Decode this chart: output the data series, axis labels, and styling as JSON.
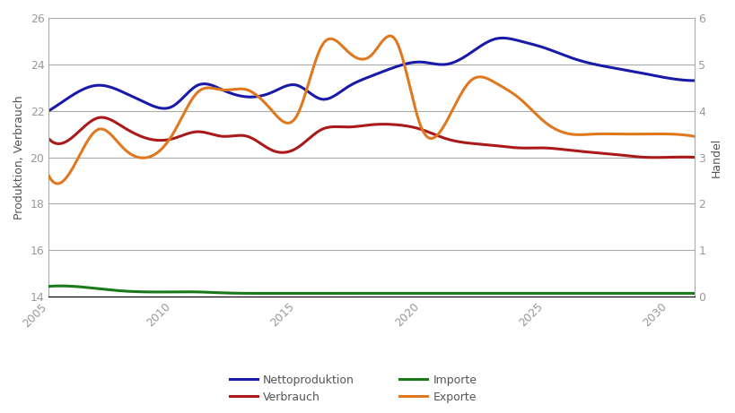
{
  "title": "",
  "ylabel_left": "Produktion, Verbrauch",
  "ylabel_right": "Handel",
  "ylim_left": [
    14,
    26
  ],
  "ylim_right": [
    0,
    6
  ],
  "yticks_left": [
    14,
    16,
    18,
    20,
    22,
    24,
    26
  ],
  "yticks_right": [
    0,
    1,
    2,
    3,
    4,
    5,
    6
  ],
  "xlim": [
    2005,
    2031
  ],
  "xticks": [
    2005,
    2010,
    2015,
    2020,
    2025,
    2030
  ],
  "background_color": "#ffffff",
  "grid_color": "#aaaaaa",
  "tick_color": "#999999",
  "label_color": "#555555",
  "nettoproduktion": {
    "years": [
      2005,
      2006,
      2007,
      2008,
      2009,
      2010,
      2011,
      2012,
      2013,
      2014,
      2015,
      2016,
      2017,
      2018,
      2019,
      2020,
      2021,
      2022,
      2023,
      2024,
      2025,
      2026,
      2027,
      2028,
      2029,
      2030,
      2031
    ],
    "values": [
      22.0,
      22.7,
      23.1,
      22.8,
      22.3,
      22.2,
      23.1,
      22.9,
      22.6,
      22.8,
      23.1,
      22.5,
      23.0,
      23.5,
      23.9,
      24.1,
      24.0,
      24.5,
      25.1,
      25.0,
      24.7,
      24.3,
      24.0,
      23.8,
      23.6,
      23.4,
      23.3
    ],
    "color": "#1a1aaa",
    "linewidth": 2.2,
    "label": "Nettoproduktion"
  },
  "verbrauch": {
    "years": [
      2005,
      2006,
      2007,
      2008,
      2009,
      2010,
      2011,
      2012,
      2013,
      2014,
      2015,
      2016,
      2017,
      2018,
      2019,
      2020,
      2021,
      2022,
      2023,
      2024,
      2025,
      2026,
      2027,
      2028,
      2029,
      2030,
      2031
    ],
    "values": [
      20.8,
      20.9,
      21.7,
      21.3,
      20.8,
      20.8,
      21.1,
      20.9,
      20.9,
      20.3,
      20.4,
      21.2,
      21.3,
      21.4,
      21.4,
      21.2,
      20.8,
      20.6,
      20.5,
      20.4,
      20.4,
      20.3,
      20.2,
      20.1,
      20.0,
      20.0,
      20.0
    ],
    "color": "#aa1a1a",
    "linewidth": 2.2,
    "label": "Verbrauch"
  },
  "importe": {
    "years": [
      2005,
      2006,
      2007,
      2008,
      2009,
      2010,
      2011,
      2012,
      2013,
      2014,
      2015,
      2016,
      2017,
      2018,
      2019,
      2020,
      2021,
      2022,
      2023,
      2024,
      2025,
      2026,
      2027,
      2028,
      2029,
      2030,
      2031
    ],
    "values": [
      0.22,
      0.22,
      0.17,
      0.12,
      0.1,
      0.1,
      0.1,
      0.08,
      0.07,
      0.07,
      0.07,
      0.07,
      0.07,
      0.07,
      0.07,
      0.07,
      0.07,
      0.07,
      0.07,
      0.07,
      0.07,
      0.07,
      0.07,
      0.07,
      0.07,
      0.07,
      0.07
    ],
    "color": "#1a7a1a",
    "linewidth": 2.2,
    "label": "Importe"
  },
  "exporte": {
    "years": [
      2005,
      2006,
      2007,
      2008,
      2009,
      2010,
      2011,
      2012,
      2013,
      2014,
      2015,
      2016,
      2017,
      2018,
      2019,
      2020,
      2021,
      2022,
      2023,
      2024,
      2025,
      2026,
      2027,
      2028,
      2029,
      2030,
      2031
    ],
    "values": [
      2.6,
      2.8,
      3.6,
      3.2,
      3.0,
      3.5,
      4.4,
      4.45,
      4.45,
      4.0,
      3.9,
      5.4,
      5.3,
      5.2,
      5.5,
      3.65,
      3.75,
      4.65,
      4.6,
      4.25,
      3.75,
      3.5,
      3.5,
      3.5,
      3.5,
      3.5,
      3.45
    ],
    "color": "#e07820",
    "linewidth": 2.2,
    "label": "Exporte"
  },
  "legend_fontsize": 9,
  "axis_fontsize": 9,
  "tick_fontsize": 9
}
